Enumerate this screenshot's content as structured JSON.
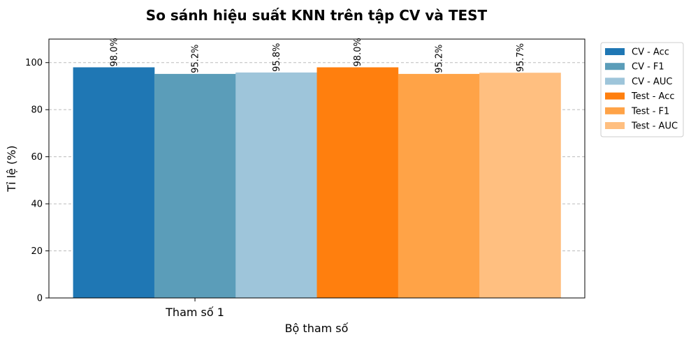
{
  "chart_data": {
    "type": "bar",
    "title": "So sánh hiệu suất KNN trên tập CV và TEST",
    "xlabel": "Bộ tham số",
    "ylabel": "Tỉ lệ (%)",
    "categories": [
      "Tham số 1"
    ],
    "ylim": [
      0,
      110
    ],
    "yticks": [
      0,
      20,
      40,
      60,
      80,
      100
    ],
    "grid": "y-dashed",
    "legend_position": "outside-top-right",
    "series": [
      {
        "name": "CV - Acc",
        "values": [
          98.0
        ],
        "label": "98.0%",
        "color": "#1f77b4"
      },
      {
        "name": "CV - F1",
        "values": [
          95.2
        ],
        "label": "95.2%",
        "color": "#5b9db9"
      },
      {
        "name": "CV - AUC",
        "values": [
          95.8
        ],
        "label": "95.8%",
        "color": "#9ec5da"
      },
      {
        "name": "Test - Acc",
        "values": [
          98.0
        ],
        "label": "98.0%",
        "color": "#ff7f0e"
      },
      {
        "name": "Test - F1",
        "values": [
          95.2
        ],
        "label": "95.2%",
        "color": "#ffa347"
      },
      {
        "name": "Test - AUC",
        "values": [
          95.7
        ],
        "label": "95.7%",
        "color": "#ffbf80"
      }
    ]
  }
}
